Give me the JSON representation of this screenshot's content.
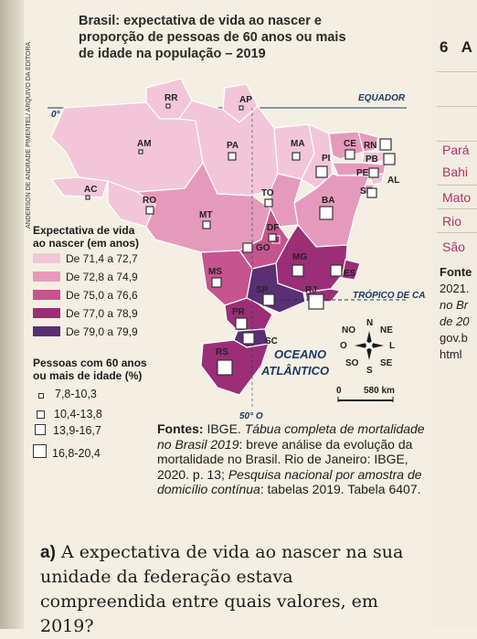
{
  "map": {
    "title": "Brasil: expectativa de vida ao nascer e proporção de pessoas de 60 anos ou mais de idade na população – 2019",
    "credit": "ANDERSON DE ANDRADE PIMENTEL/ ARQUIVO DA EDITORA",
    "colors": {
      "c1": "#f2c6d8",
      "c2": "#e69abb",
      "c3": "#c6548f",
      "c4": "#9b2e77",
      "c5": "#5a2f73",
      "land": "#f7eed9",
      "sea": "#f4efe2"
    },
    "states": [
      "RR",
      "AP",
      "AM",
      "PA",
      "MA",
      "CE",
      "RN",
      "PB",
      "PI",
      "PE",
      "AL",
      "SE",
      "AC",
      "RO",
      "TO",
      "BA",
      "MT",
      "DF",
      "GO",
      "MG",
      "ES",
      "MS",
      "SP",
      "RJ",
      "PR",
      "SC",
      "RS"
    ],
    "labels": {
      "equador": "EQUADOR",
      "tropico": "TRÓPICO DE CAPRICÓRNIO",
      "oceano1": "OCEANO",
      "oceano2": "ATLÂNTICO",
      "lon": "50° O",
      "lat0": "0°",
      "scale": "580 km",
      "scale0": "0",
      "compass": [
        "N",
        "NE",
        "L",
        "SE",
        "S",
        "SO",
        "O",
        "NO"
      ]
    }
  },
  "legend": {
    "title1": "Expectativa de vida",
    "title2": "ao nascer (em anos)",
    "items": [
      {
        "label": "De 71,4 a 72,7",
        "color": "#f2c6d8"
      },
      {
        "label": "De 72,8 a 74,9",
        "color": "#e69abb"
      },
      {
        "label": "De 75,0 a 76,6",
        "color": "#c6548f"
      },
      {
        "label": "De 77,0 a 78,9",
        "color": "#9b2e77"
      },
      {
        "label": "De 79,0 a 79,9",
        "color": "#5a2f73"
      }
    ],
    "title3": "Pessoas com 60 anos",
    "title4": "ou mais de idade (%)",
    "symbols": [
      {
        "label": "7,8-10,3"
      },
      {
        "label": "10,4-13,8"
      },
      {
        "label": "13,9-16,7"
      },
      {
        "label": "16,8-20,4"
      }
    ]
  },
  "fontes": {
    "lead": "Fontes:",
    "text1": "IBGE. ",
    "italic1": "Tábua completa de mortalidade no Brasil 2019",
    "text2": ": breve análise da evolução da mortalidade no Brasil. Rio de Janeiro: IBGE, 2020. p. 13; ",
    "italic2": "Pesquisa nacional por amostra de domicílio contínua",
    "text3": ": tabelas 2019. Tabela 6407."
  },
  "question": {
    "letter": "a)",
    "text": "A expectativa de vida ao nascer na sua unidade da federação estava compreendida entre quais valores, em 2019?"
  },
  "right_page": {
    "number": "6",
    "letter": "A",
    "items": [
      "Pará",
      "Bahi",
      "Mato",
      "Rio",
      "São"
    ],
    "fonte_lines": [
      "Fonte",
      "2021.",
      "no Br",
      "de 20",
      "gov.b",
      "html"
    ]
  }
}
